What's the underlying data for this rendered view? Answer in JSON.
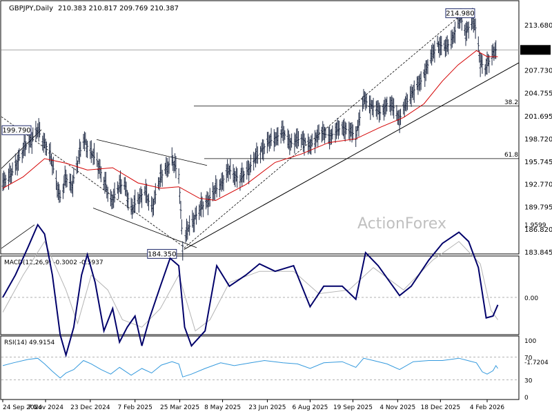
{
  "header": {
    "symbol": "GBPJPY,Daily",
    "ohlc": "210.383 210.817 209.769 210.387"
  },
  "watermark": "ActionForex",
  "colors": {
    "price": "#1f2a44",
    "ma": "#d40000",
    "macd": "#00006a",
    "macd_signal": "#b4b4b4",
    "rsi": "#3399dd",
    "grid": "#000000",
    "pane_border": "#000000"
  },
  "chart_data": [
    {
      "type": "line",
      "title": "GBPJPY,Daily",
      "subtitle": "210.383 210.817 209.769 210.387",
      "xlabel": "",
      "ylabel": "",
      "ylim": [
        183.845,
        216.5
      ],
      "yticks": [
        "213.680",
        "210.387",
        "207.730",
        "204.755",
        "201.695",
        "198.720",
        "195.745",
        "192.770",
        "189.795",
        "186.820",
        "183.845"
      ],
      "x_ticks": [
        "24 Sep 2024",
        "7 Nov 2024",
        "23 Dec 2024",
        "7 Feb 2025",
        "25 Mar 2025",
        "8 May 2025",
        "23 Jun 2025",
        "6 Aug 2025",
        "19 Sep 2025",
        "4 Nov 2025",
        "18 Dec 2025",
        "4 Feb 2026"
      ],
      "last_price_label": "210.387",
      "price_markers": [
        {
          "label": "199.790",
          "value": 199.79,
          "x": "2024-10-30"
        },
        {
          "label": "184.350",
          "value": 184.35,
          "x": "2025-03-28"
        },
        {
          "label": "214.980",
          "value": 214.98,
          "x": "2026-01-08"
        }
      ],
      "fib_levels": [
        {
          "label": "38.2",
          "value": 203.0
        },
        {
          "label": "61.8",
          "value": 196.1
        }
      ],
      "series": [
        {
          "values": [
            [
              "2024-09-24",
              193.2
            ],
            [
              "2024-10-02",
              193.8
            ],
            [
              "2024-10-10",
              196.0
            ],
            [
              "2024-10-17",
              197.6
            ],
            [
              "2024-10-24",
              198.8
            ],
            [
              "2024-10-30",
              199.8
            ],
            [
              "2024-11-06",
              198.2
            ],
            [
              "2024-11-11",
              196.9
            ],
            [
              "2024-11-18",
              193.1
            ],
            [
              "2024-11-22",
              191.0
            ],
            [
              "2024-11-28",
              193.5
            ],
            [
              "2024-12-04",
              192.6
            ],
            [
              "2024-12-10",
              195.5
            ],
            [
              "2024-12-16",
              198.8
            ],
            [
              "2024-12-23",
              196.9
            ],
            [
              "2024-12-30",
              195.8
            ],
            [
              "2025-01-06",
              193.1
            ],
            [
              "2025-01-13",
              190.5
            ],
            [
              "2025-01-20",
              192.1
            ],
            [
              "2025-01-27",
              193.0
            ],
            [
              "2025-02-03",
              189.2
            ],
            [
              "2025-02-10",
              190.8
            ],
            [
              "2025-02-17",
              191.8
            ],
            [
              "2025-02-24",
              189.5
            ],
            [
              "2025-03-03",
              192.8
            ],
            [
              "2025-03-10",
              194.8
            ],
            [
              "2025-03-17",
              195.8
            ],
            [
              "2025-03-24",
              194.0
            ],
            [
              "2025-03-28",
              184.6
            ],
            [
              "2025-04-03",
              187.0
            ],
            [
              "2025-04-14",
              189.3
            ],
            [
              "2025-04-24",
              190.8
            ],
            [
              "2025-05-06",
              192.8
            ],
            [
              "2025-05-15",
              194.6
            ],
            [
              "2025-05-26",
              193.3
            ],
            [
              "2025-06-06",
              195.2
            ],
            [
              "2025-06-17",
              197.3
            ],
            [
              "2025-06-27",
              198.5
            ],
            [
              "2025-07-09",
              199.5
            ],
            [
              "2025-07-18",
              198.1
            ],
            [
              "2025-07-28",
              198.8
            ],
            [
              "2025-08-06",
              197.6
            ],
            [
              "2025-08-15",
              199.5
            ],
            [
              "2025-08-27",
              199.1
            ],
            [
              "2025-09-08",
              200.3
            ],
            [
              "2025-09-16",
              199.6
            ],
            [
              "2025-09-22",
              199.2
            ],
            [
              "2025-09-30",
              203.8
            ],
            [
              "2025-10-08",
              203.1
            ],
            [
              "2025-10-17",
              202.1
            ],
            [
              "2025-10-24",
              203.3
            ],
            [
              "2025-10-31",
              202.8
            ],
            [
              "2025-11-06",
              201.3
            ],
            [
              "2025-11-10",
              202.5
            ],
            [
              "2025-11-18",
              204.7
            ],
            [
              "2025-11-27",
              206.0
            ],
            [
              "2025-12-06",
              208.7
            ],
            [
              "2025-12-15",
              211.2
            ],
            [
              "2025-12-24",
              210.6
            ],
            [
              "2025-12-31",
              212.2
            ],
            [
              "2026-01-06",
              214.2
            ],
            [
              "2026-01-08",
              214.5
            ],
            [
              "2026-01-13",
              212.8
            ],
            [
              "2026-01-20",
              214.1
            ],
            [
              "2026-01-24",
              213.0
            ],
            [
              "2026-01-28",
              208.9
            ],
            [
              "2026-02-02",
              207.8
            ],
            [
              "2026-02-06",
              208.9
            ],
            [
              "2026-02-11",
              210.4
            ],
            [
              "2026-02-15",
              210.4
            ]
          ]
        },
        {
          "values": [
            [
              "2024-09-24",
              192.2
            ],
            [
              "2024-10-15",
              193.7
            ],
            [
              "2024-11-06",
              196.1
            ],
            [
              "2024-11-28",
              195.5
            ],
            [
              "2024-12-20",
              194.6
            ],
            [
              "2025-01-15",
              194.9
            ],
            [
              "2025-02-10",
              192.9
            ],
            [
              "2025-03-06",
              192.2
            ],
            [
              "2025-03-24",
              192.4
            ],
            [
              "2025-04-14",
              190.9
            ],
            [
              "2025-05-01",
              190.6
            ],
            [
              "2025-06-01",
              192.7
            ],
            [
              "2025-07-01",
              195.6
            ],
            [
              "2025-07-28",
              196.7
            ],
            [
              "2025-08-25",
              198.2
            ],
            [
              "2025-09-22",
              198.7
            ],
            [
              "2025-10-17",
              200.2
            ],
            [
              "2025-11-10",
              201.5
            ],
            [
              "2025-12-01",
              203.3
            ],
            [
              "2025-12-20",
              206.3
            ],
            [
              "2026-01-05",
              208.4
            ],
            [
              "2026-01-24",
              210.3
            ],
            [
              "2026-02-04",
              209.5
            ],
            [
              "2026-02-15",
              209.5
            ]
          ]
        }
      ]
    },
    {
      "type": "line",
      "title": "MACD(12,26,9) -0.3002 -0.5937",
      "ylim": [
        -1.7204,
        1.9599
      ],
      "yticks": [
        "1.9599",
        "0.00",
        "-1.7204"
      ],
      "series": [
        {
          "values": [
            [
              "2024-09-24",
              0.0
            ],
            [
              "2024-10-07",
              0.6
            ],
            [
              "2024-10-20",
              1.35
            ],
            [
              "2024-10-30",
              1.95
            ],
            [
              "2024-11-06",
              1.7
            ],
            [
              "2024-11-14",
              0.6
            ],
            [
              "2024-11-22",
              -1.0
            ],
            [
              "2024-11-28",
              -1.55
            ],
            [
              "2024-12-06",
              -0.8
            ],
            [
              "2024-12-14",
              0.6
            ],
            [
              "2024-12-20",
              1.15
            ],
            [
              "2024-12-28",
              0.4
            ],
            [
              "2025-01-06",
              -0.9
            ],
            [
              "2025-01-15",
              -0.3
            ],
            [
              "2025-01-22",
              -1.2
            ],
            [
              "2025-01-30",
              -0.8
            ],
            [
              "2025-02-07",
              -0.5
            ],
            [
              "2025-02-14",
              -1.3
            ],
            [
              "2025-02-22",
              -0.55
            ],
            [
              "2025-03-05",
              0.3
            ],
            [
              "2025-03-15",
              1.05
            ],
            [
              "2025-03-24",
              0.85
            ],
            [
              "2025-03-30",
              -0.8
            ],
            [
              "2025-04-06",
              -1.3
            ],
            [
              "2025-04-20",
              -0.9
            ],
            [
              "2025-05-02",
              0.85
            ],
            [
              "2025-05-15",
              0.3
            ],
            [
              "2025-06-01",
              0.6
            ],
            [
              "2025-06-15",
              0.9
            ],
            [
              "2025-07-01",
              0.7
            ],
            [
              "2025-07-20",
              0.85
            ],
            [
              "2025-08-06",
              -0.25
            ],
            [
              "2025-08-20",
              0.3
            ],
            [
              "2025-09-08",
              0.3
            ],
            [
              "2025-09-22",
              -0.05
            ],
            [
              "2025-10-02",
              1.2
            ],
            [
              "2025-10-15",
              0.85
            ],
            [
              "2025-11-06",
              0.05
            ],
            [
              "2025-11-18",
              0.3
            ],
            [
              "2025-12-06",
              1.0
            ],
            [
              "2025-12-20",
              1.45
            ],
            [
              "2026-01-06",
              1.75
            ],
            [
              "2026-01-16",
              1.5
            ],
            [
              "2026-01-26",
              0.8
            ],
            [
              "2026-02-03",
              -0.55
            ],
            [
              "2026-02-10",
              -0.5
            ],
            [
              "2026-02-15",
              -0.2
            ]
          ]
        },
        {
          "values": [
            [
              "2024-09-24",
              -0.4
            ],
            [
              "2024-10-15",
              0.6
            ],
            [
              "2024-11-06",
              1.5
            ],
            [
              "2024-11-28",
              0.2
            ],
            [
              "2024-12-10",
              -0.7
            ],
            [
              "2024-12-24",
              0.6
            ],
            [
              "2025-01-10",
              0.2
            ],
            [
              "2025-01-25",
              -0.6
            ],
            [
              "2025-02-14",
              -0.8
            ],
            [
              "2025-03-05",
              -0.3
            ],
            [
              "2025-03-24",
              0.6
            ],
            [
              "2025-04-10",
              -0.9
            ],
            [
              "2025-04-25",
              -0.6
            ],
            [
              "2025-05-15",
              0.4
            ],
            [
              "2025-06-15",
              0.7
            ],
            [
              "2025-07-20",
              0.7
            ],
            [
              "2025-08-15",
              0.1
            ],
            [
              "2025-09-15",
              0.2
            ],
            [
              "2025-10-10",
              0.8
            ],
            [
              "2025-11-10",
              0.2
            ],
            [
              "2025-12-10",
              1.0
            ],
            [
              "2026-01-06",
              1.5
            ],
            [
              "2026-01-28",
              0.9
            ],
            [
              "2026-02-08",
              -0.35
            ],
            [
              "2026-02-15",
              -0.6
            ]
          ]
        }
      ]
    },
    {
      "type": "line",
      "title": "RSI(14) 49.9154",
      "ylim": [
        0,
        100
      ],
      "yticks": [
        "100",
        "70",
        "30",
        "0"
      ],
      "levels": [
        70,
        30
      ],
      "series": [
        {
          "values": [
            [
              "2024-09-24",
              55
            ],
            [
              "2024-10-05",
              60
            ],
            [
              "2024-10-20",
              66
            ],
            [
              "2024-10-30",
              68
            ],
            [
              "2024-11-06",
              58
            ],
            [
              "2024-11-14",
              45
            ],
            [
              "2024-11-22",
              33
            ],
            [
              "2024-11-28",
              42
            ],
            [
              "2024-12-06",
              48
            ],
            [
              "2024-12-16",
              64
            ],
            [
              "2024-12-24",
              58
            ],
            [
              "2025-01-03",
              48
            ],
            [
              "2025-01-13",
              40
            ],
            [
              "2025-01-22",
              52
            ],
            [
              "2025-02-03",
              38
            ],
            [
              "2025-02-14",
              50
            ],
            [
              "2025-02-24",
              42
            ],
            [
              "2025-03-06",
              56
            ],
            [
              "2025-03-17",
              62
            ],
            [
              "2025-03-24",
              58
            ],
            [
              "2025-03-28",
              35
            ],
            [
              "2025-04-06",
              40
            ],
            [
              "2025-04-20",
              50
            ],
            [
              "2025-05-06",
              60
            ],
            [
              "2025-05-20",
              55
            ],
            [
              "2025-06-06",
              60
            ],
            [
              "2025-06-20",
              64
            ],
            [
              "2025-07-09",
              60
            ],
            [
              "2025-07-24",
              58
            ],
            [
              "2025-08-06",
              50
            ],
            [
              "2025-08-20",
              60
            ],
            [
              "2025-09-08",
              62
            ],
            [
              "2025-09-22",
              52
            ],
            [
              "2025-09-30",
              68
            ],
            [
              "2025-10-10",
              64
            ],
            [
              "2025-10-24",
              58
            ],
            [
              "2025-11-06",
              48
            ],
            [
              "2025-11-20",
              62
            ],
            [
              "2025-12-06",
              64
            ],
            [
              "2025-12-20",
              64
            ],
            [
              "2026-01-06",
              68
            ],
            [
              "2026-01-15",
              64
            ],
            [
              "2026-01-24",
              60
            ],
            [
              "2026-01-30",
              44
            ],
            [
              "2026-02-04",
              40
            ],
            [
              "2026-02-10",
              46
            ],
            [
              "2026-02-13",
              55
            ],
            [
              "2026-02-15",
              50
            ]
          ]
        }
      ]
    }
  ]
}
